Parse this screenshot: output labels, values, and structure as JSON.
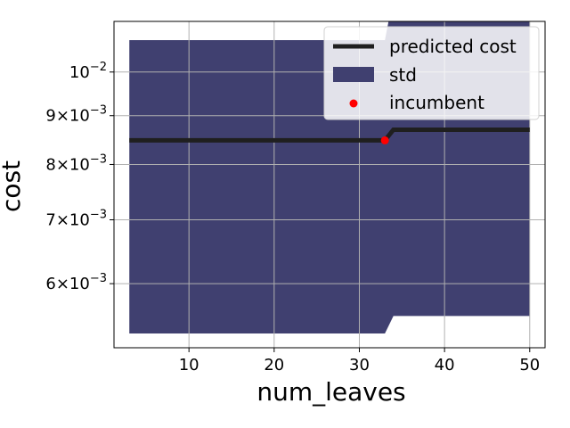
{
  "chart_data": {
    "type": "line",
    "xlabel": "num_leaves",
    "ylabel": "cost",
    "x_scale": "linear",
    "y_scale": "log",
    "xlim": [
      1.2,
      51.8
    ],
    "ylim": [
      0.00514,
      0.0113
    ],
    "xticks": [
      10,
      20,
      30,
      40,
      50
    ],
    "xtick_labels": [
      "10",
      "20",
      "30",
      "40",
      "50"
    ],
    "yticks": [
      0.006,
      0.007,
      0.008,
      0.009,
      0.01
    ],
    "ytick_labels": [
      {
        "mantissa": "6",
        "times": "×",
        "base": "10",
        "exp": "−3"
      },
      {
        "mantissa": "7",
        "times": "×",
        "base": "10",
        "exp": "−3"
      },
      {
        "mantissa": "8",
        "times": "×",
        "base": "10",
        "exp": "−3"
      },
      {
        "mantissa": "9",
        "times": "×",
        "base": "10",
        "exp": "−3"
      },
      {
        "mantissa": "",
        "times": "",
        "base": "10",
        "exp": "−2"
      }
    ],
    "grid": true,
    "legend_position": "top-right",
    "series": [
      {
        "name": "predicted cost",
        "kind": "line",
        "color": "#1f1f1f",
        "x": [
          3,
          33,
          34,
          50
        ],
        "y": [
          0.00848,
          0.00848,
          0.0087,
          0.0087
        ]
      },
      {
        "name": "std",
        "kind": "band",
        "color": "#404070",
        "x": [
          3,
          33,
          34,
          50
        ],
        "lower": [
          0.00532,
          0.00532,
          0.00555,
          0.00555
        ],
        "upper": [
          0.0108,
          0.0108,
          0.012,
          0.012
        ]
      },
      {
        "name": "incumbent",
        "kind": "scatter",
        "color": "#ff0000",
        "x": [
          33
        ],
        "y": [
          0.00848
        ]
      }
    ]
  }
}
